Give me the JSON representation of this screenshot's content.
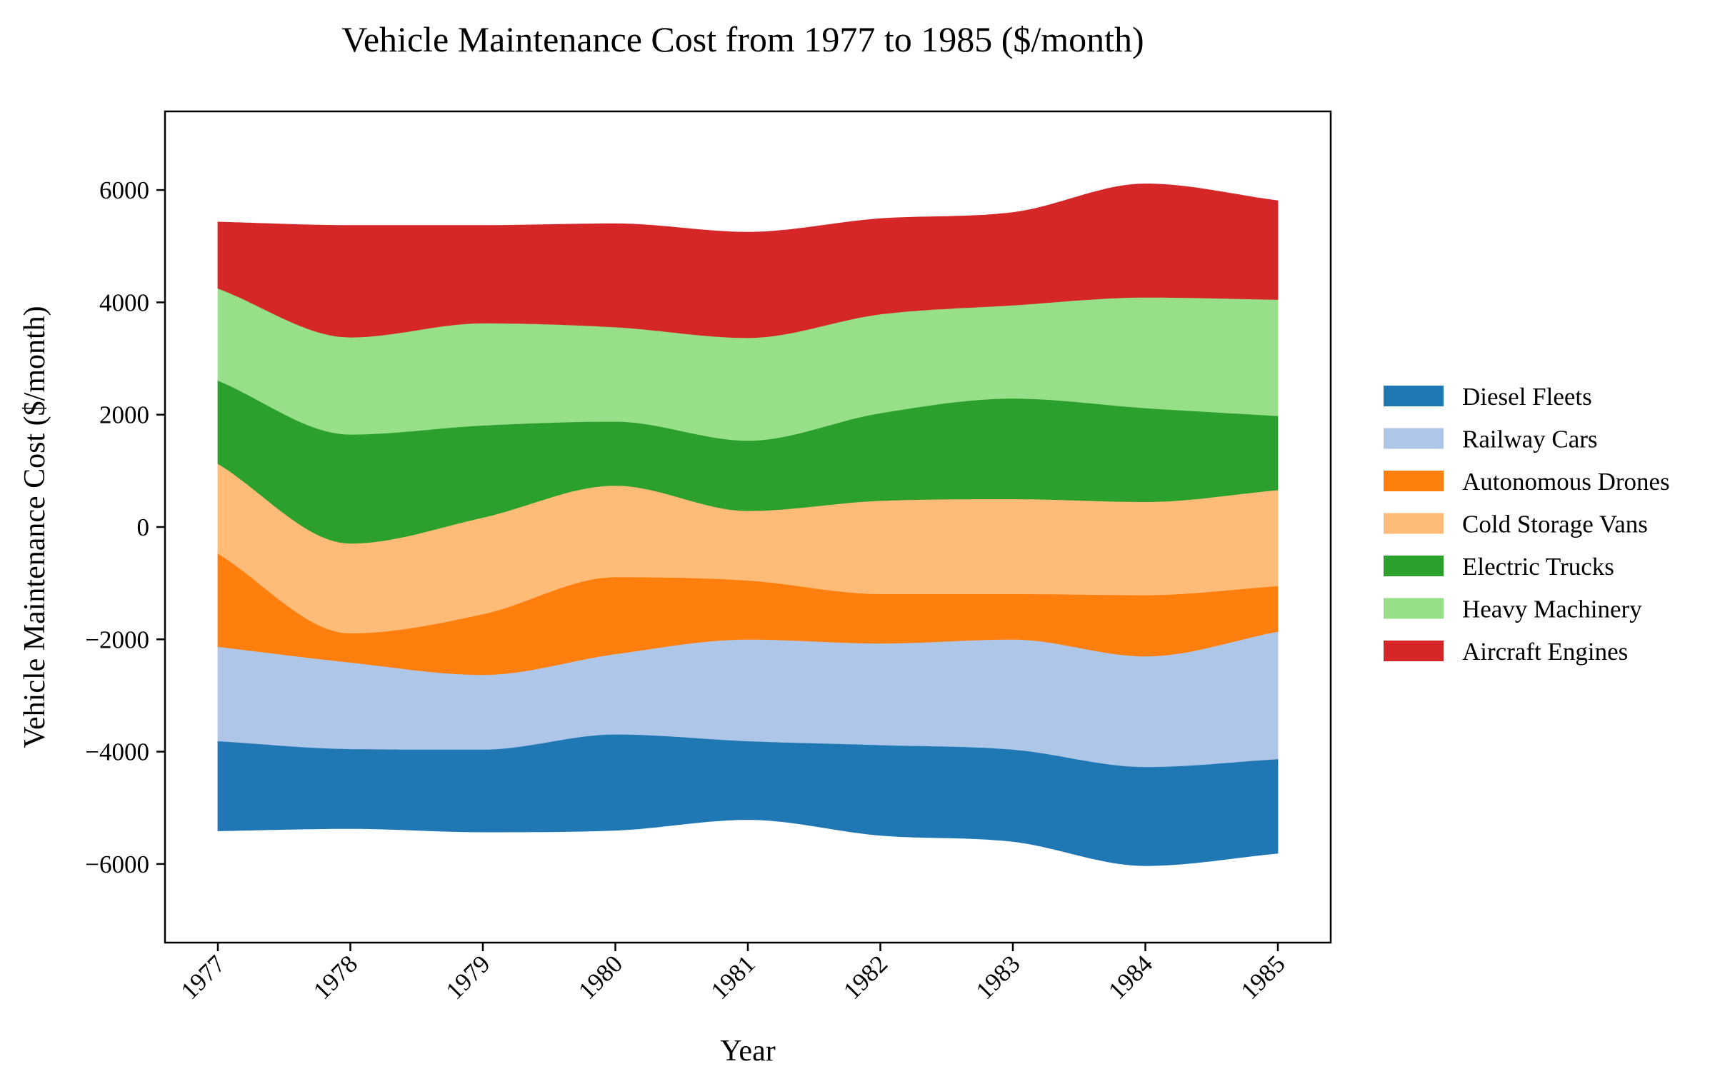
{
  "chart_data": {
    "type": "area",
    "subtype": "streamgraph",
    "title": "Vehicle Maintenance Cost from 1977 to 1985 ($/month)",
    "xlabel": "Year",
    "ylabel": "Vehicle Maintenance Cost ($/month)",
    "x": [
      1977,
      1978,
      1979,
      1980,
      1981,
      1982,
      1983,
      1984,
      1985
    ],
    "x_tick_labels": [
      "1977",
      "1978",
      "1979",
      "1980",
      "1981",
      "1982",
      "1983",
      "1984",
      "1985"
    ],
    "y_ticks": [
      -6000,
      -4000,
      -2000,
      0,
      2000,
      4000,
      6000
    ],
    "y_tick_labels": [
      "−6000",
      "−4000",
      "−2000",
      "0",
      "2000",
      "4000",
      "6000"
    ],
    "ylim": [
      -7400,
      7400
    ],
    "baseline": [
      -5410,
      -5370,
      -5430,
      -5400,
      -5210,
      -5490,
      -5600,
      -6030,
      -5810
    ],
    "series": [
      {
        "name": "Diesel Fleets",
        "color": "#1f77b4",
        "values": [
          1600,
          1420,
          1470,
          1710,
          1400,
          1610,
          1640,
          1760,
          1680
        ]
      },
      {
        "name": "Railway Cars",
        "color": "#aec7e8",
        "values": [
          1680,
          1540,
          1330,
          1430,
          1810,
          1810,
          1960,
          1970,
          2270
        ]
      },
      {
        "name": "Autonomous Drones",
        "color": "#ff7f0e",
        "values": [
          1660,
          520,
          1080,
          1370,
          1050,
          880,
          810,
          1090,
          810
        ]
      },
      {
        "name": "Cold Storage Vans",
        "color": "#ffbb78",
        "values": [
          1600,
          1600,
          1720,
          1630,
          1240,
          1660,
          1690,
          1660,
          1710
        ]
      },
      {
        "name": "Electric Trucks",
        "color": "#2ca02c",
        "values": [
          1480,
          1940,
          1640,
          1140,
          1250,
          1560,
          1790,
          1670,
          1320
        ]
      },
      {
        "name": "Heavy Machinery",
        "color": "#98df8a",
        "values": [
          1640,
          1730,
          1820,
          1680,
          1830,
          1760,
          1660,
          1970,
          2070
        ]
      },
      {
        "name": "Aircraft Engines",
        "color": "#d62728",
        "values": [
          1180,
          1990,
          1740,
          1840,
          1880,
          1700,
          1650,
          2020,
          1760
        ]
      }
    ],
    "legend_position": "right",
    "grid": false
  }
}
